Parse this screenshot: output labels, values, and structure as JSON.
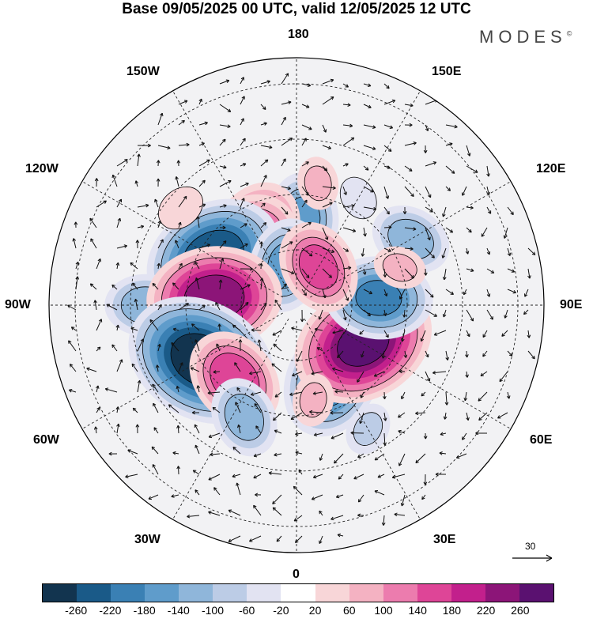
{
  "title": "Base 09/05/2025 00 UTC, valid 12/05/2025 12 UTC",
  "brand": {
    "name": "MODES",
    "mark": "©"
  },
  "longitude_labels": {
    "top": "180",
    "bottom": "0",
    "left": "90W",
    "right": "90E",
    "upper_left": "150W",
    "upper_right": "150E",
    "mid_upper_left": "120W",
    "mid_upper_right": "120E",
    "mid_lower_left": "60W",
    "mid_lower_right": "60E",
    "lower_left": "30W",
    "lower_right": "30E"
  },
  "vector_reference": {
    "value": "30"
  },
  "colorbar": {
    "ticks": [
      "-260",
      "-220",
      "-180",
      "-140",
      "-100",
      "-60",
      "-20",
      "20",
      "60",
      "100",
      "140",
      "180",
      "220",
      "260"
    ],
    "colors": [
      "#12344f",
      "#1a5a88",
      "#3a80b4",
      "#5f9ccb",
      "#8fb6da",
      "#bccce6",
      "#e2e3f2",
      "#ffffff",
      "#f8d6d8",
      "#f4b2c2",
      "#ec7cae",
      "#de4597",
      "#c2208c",
      "#8c1578",
      "#5a1170"
    ]
  },
  "anomalies": [
    {
      "lon": 175,
      "lat": 58,
      "value": -140
    },
    {
      "lon": 150,
      "lat": 45,
      "value": -40
    },
    {
      "lon": -150,
      "lat": 60,
      "value": 180
    },
    {
      "lon": -135,
      "lat": 62,
      "value": 220
    },
    {
      "lon": -120,
      "lat": 55,
      "value": -250
    },
    {
      "lon": -165,
      "lat": 75,
      "value": -150
    },
    {
      "lon": -90,
      "lat": 35,
      "value": -120
    },
    {
      "lon": -95,
      "lat": 60,
      "value": 240
    },
    {
      "lon": -60,
      "lat": 50,
      "value": -280
    },
    {
      "lon": -40,
      "lat": 55,
      "value": 170
    },
    {
      "lon": -25,
      "lat": 45,
      "value": -120
    },
    {
      "lon": 25,
      "lat": 60,
      "value": -200
    },
    {
      "lon": 60,
      "lat": 62,
      "value": 260
    },
    {
      "lon": 95,
      "lat": 60,
      "value": -180
    },
    {
      "lon": 120,
      "lat": 42,
      "value": -120
    },
    {
      "lon": 150,
      "lat": 74,
      "value": 150
    },
    {
      "lon": 170,
      "lat": 45,
      "value": 60
    },
    {
      "lon": 110,
      "lat": 50,
      "value": 60
    },
    {
      "lon": 10,
      "lat": 55,
      "value": 60
    },
    {
      "lon": -130,
      "lat": 35,
      "value": 50
    },
    {
      "lon": 30,
      "lat": 38,
      "value": -60
    }
  ]
}
